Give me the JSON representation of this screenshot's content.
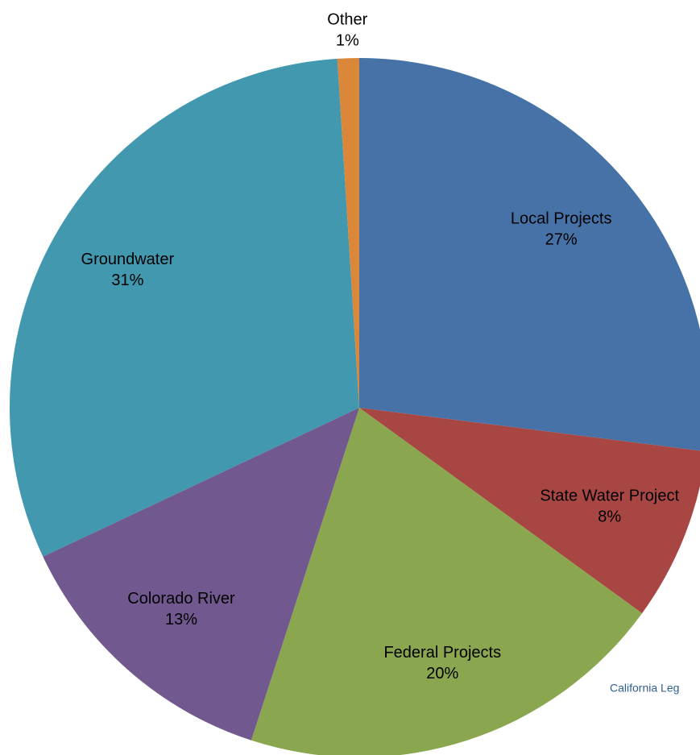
{
  "chart_data": {
    "type": "pie",
    "categories": [
      "Local Projects",
      "State Water Project",
      "Federal Projects",
      "Colorado River",
      "Groundwater",
      "Other"
    ],
    "values": [
      27,
      8,
      20,
      13,
      31,
      1
    ],
    "value_labels": [
      "27%",
      "8%",
      "20%",
      "13%",
      "31%",
      "1%"
    ],
    "colors": [
      "#4672a8",
      "#a84644",
      "#8aa64e",
      "#71598f",
      "#4198af",
      "#da8739"
    ],
    "source": "California Leg"
  }
}
